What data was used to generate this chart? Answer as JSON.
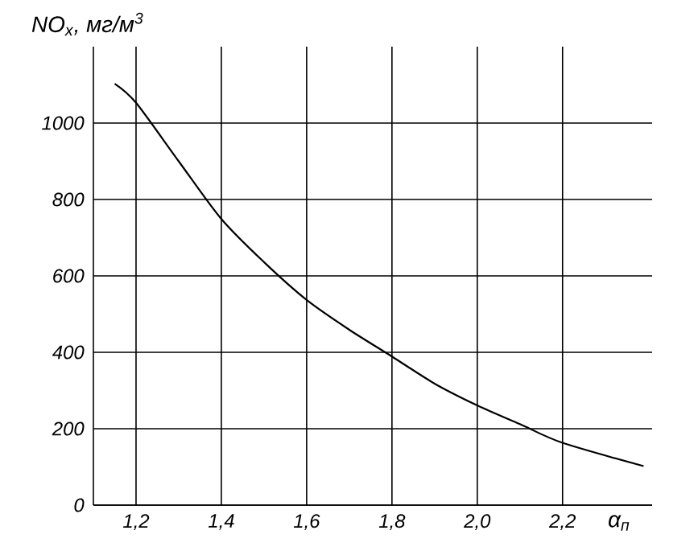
{
  "chart_data": {
    "type": "line",
    "xlabel": "α$_{п}$",
    "ylabel": "NO$_{x}$, мг/м$^{3}$",
    "x": [
      1.15,
      1.2,
      1.3,
      1.4,
      1.5,
      1.6,
      1.7,
      1.8,
      1.9,
      2.0,
      2.1,
      2.2,
      2.39
    ],
    "values": [
      1103,
      1053,
      900,
      749,
      636,
      537,
      459,
      389,
      318,
      261,
      212,
      163,
      102
    ],
    "color": "#000000",
    "xlim": [
      1.1,
      2.41
    ],
    "ylim": [
      0,
      1200
    ],
    "xticks": [
      {
        "value": 1.2,
        "label": "1,2"
      },
      {
        "value": 1.4,
        "label": "1,4"
      },
      {
        "value": 1.6,
        "label": "1,6"
      },
      {
        "value": 1.8,
        "label": "1,8"
      },
      {
        "value": 2.0,
        "label": "2,0"
      },
      {
        "value": 2.2,
        "label": "2,2"
      }
    ],
    "yticks": [
      0,
      200,
      400,
      600,
      800,
      1000
    ],
    "grid": true,
    "marker": "none",
    "line_style": "solid"
  }
}
